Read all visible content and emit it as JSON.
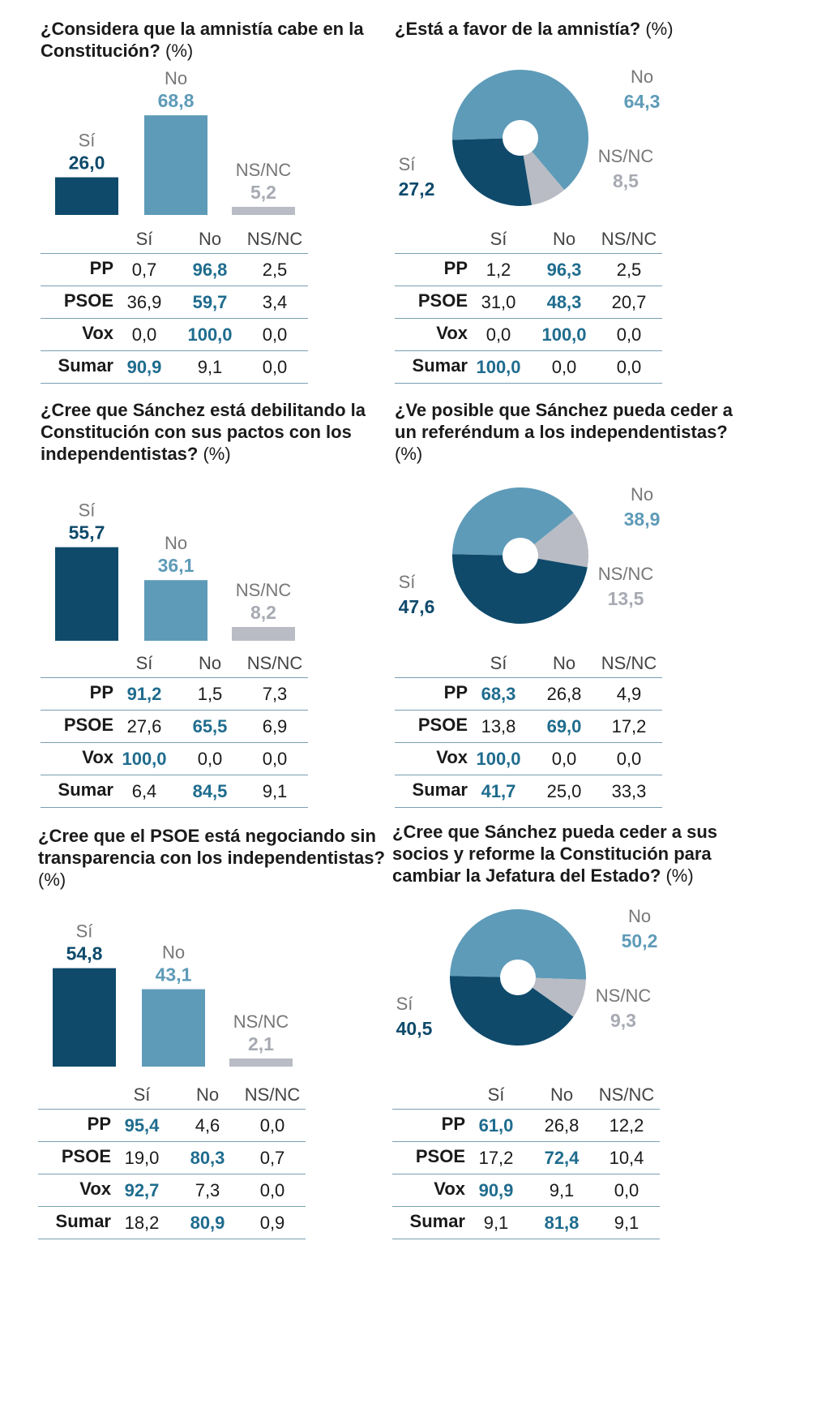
{
  "columns": [
    "Sí",
    "No",
    "NS/NC"
  ],
  "colors": {
    "si": "#0f4a6b",
    "no": "#5e9bb8",
    "nsnc": "#b9bcc4",
    "hl": "#1f6c8e"
  },
  "panels": [
    {
      "title": "¿Considera que la amnistía cabe en la Constitución?",
      "unit": "(%)",
      "chart_data": {
        "type": "bar",
        "categories": [
          "Sí",
          "No",
          "NS/NC"
        ],
        "values": [
          26.0,
          68.8,
          5.2
        ],
        "labels": [
          "26,0",
          "68,8",
          "5,2"
        ],
        "ylim": [
          0,
          100
        ]
      },
      "table": [
        {
          "party": "PP",
          "values": [
            "0,7",
            "96,8",
            "2,5"
          ],
          "hl": 1
        },
        {
          "party": "PSOE",
          "values": [
            "36,9",
            "59,7",
            "3,4"
          ],
          "hl": 1
        },
        {
          "party": "Vox",
          "values": [
            "0,0",
            "100,0",
            "0,0"
          ],
          "hl": 1
        },
        {
          "party": "Sumar",
          "values": [
            "90,9",
            "9,1",
            "0,0"
          ],
          "hl": 0
        }
      ]
    },
    {
      "title": "¿Está a favor de la amnistía?",
      "unit": "(%)",
      "chart_data": {
        "type": "pie",
        "categories": [
          "Sí",
          "No",
          "NS/NC"
        ],
        "values": [
          27.2,
          64.3,
          8.5
        ],
        "labels": [
          "27,2",
          "64,3",
          "8,5"
        ]
      },
      "table": [
        {
          "party": "PP",
          "values": [
            "1,2",
            "96,3",
            "2,5"
          ],
          "hl": 1
        },
        {
          "party": "PSOE",
          "values": [
            "31,0",
            "48,3",
            "20,7"
          ],
          "hl": 1
        },
        {
          "party": "Vox",
          "values": [
            "0,0",
            "100,0",
            "0,0"
          ],
          "hl": 1
        },
        {
          "party": "Sumar",
          "values": [
            "100,0",
            "0,0",
            "0,0"
          ],
          "hl": 0
        }
      ]
    },
    {
      "title": "¿Cree que Sánchez está debilitando la Constitución con sus pactos con los independentistas?",
      "unit": "(%)",
      "chart_data": {
        "type": "bar",
        "categories": [
          "Sí",
          "No",
          "NS/NC"
        ],
        "values": [
          55.7,
          36.1,
          8.2
        ],
        "labels": [
          "55,7",
          "36,1",
          "8,2"
        ],
        "ylim": [
          0,
          100
        ]
      },
      "table": [
        {
          "party": "PP",
          "values": [
            "91,2",
            "1,5",
            "7,3"
          ],
          "hl": 0
        },
        {
          "party": "PSOE",
          "values": [
            "27,6",
            "65,5",
            "6,9"
          ],
          "hl": 1
        },
        {
          "party": "Vox",
          "values": [
            "100,0",
            "0,0",
            "0,0"
          ],
          "hl": 0
        },
        {
          "party": "Sumar",
          "values": [
            "6,4",
            "84,5",
            "9,1"
          ],
          "hl": 1
        }
      ]
    },
    {
      "title": "¿Ve posible que Sánchez pueda ceder a un referéndum a los independentistas?",
      "unit": "(%)",
      "chart_data": {
        "type": "pie",
        "categories": [
          "Sí",
          "No",
          "NS/NC"
        ],
        "values": [
          47.6,
          38.9,
          13.5
        ],
        "labels": [
          "47,6",
          "38,9",
          "13,5"
        ]
      },
      "table": [
        {
          "party": "PP",
          "values": [
            "68,3",
            "26,8",
            "4,9"
          ],
          "hl": 0
        },
        {
          "party": "PSOE",
          "values": [
            "13,8",
            "69,0",
            "17,2"
          ],
          "hl": 1
        },
        {
          "party": "Vox",
          "values": [
            "100,0",
            "0,0",
            "0,0"
          ],
          "hl": 0
        },
        {
          "party": "Sumar",
          "values": [
            "41,7",
            "25,0",
            "33,3"
          ],
          "hl": 0
        }
      ]
    },
    {
      "title": "¿Cree que el PSOE está negociando sin transparencia con los independentistas?",
      "unit": "(%)",
      "chart_data": {
        "type": "bar",
        "categories": [
          "Sí",
          "No",
          "NS/NC"
        ],
        "values": [
          54.8,
          43.1,
          2.1
        ],
        "labels": [
          "54,8",
          "43,1",
          "2,1"
        ],
        "ylim": [
          0,
          100
        ]
      },
      "table": [
        {
          "party": "PP",
          "values": [
            "95,4",
            "4,6",
            "0,0"
          ],
          "hl": 0
        },
        {
          "party": "PSOE",
          "values": [
            "19,0",
            "80,3",
            "0,7"
          ],
          "hl": 1
        },
        {
          "party": "Vox",
          "values": [
            "92,7",
            "7,3",
            "0,0"
          ],
          "hl": 0
        },
        {
          "party": "Sumar",
          "values": [
            "18,2",
            "80,9",
            "0,9"
          ],
          "hl": 1
        }
      ]
    },
    {
      "title": "¿Cree que Sánchez pueda ceder a sus socios y reforme la Constitución para cambiar la Jefatura del Estado?",
      "unit": "(%)",
      "chart_data": {
        "type": "pie",
        "categories": [
          "Sí",
          "No",
          "NS/NC"
        ],
        "values": [
          40.5,
          50.2,
          9.3
        ],
        "labels": [
          "40,5",
          "50,2",
          "9,3"
        ]
      },
      "table": [
        {
          "party": "PP",
          "values": [
            "61,0",
            "26,8",
            "12,2"
          ],
          "hl": 0
        },
        {
          "party": "PSOE",
          "values": [
            "17,2",
            "72,4",
            "10,4"
          ],
          "hl": 1
        },
        {
          "party": "Vox",
          "values": [
            "90,9",
            "9,1",
            "0,0"
          ],
          "hl": 0
        },
        {
          "party": "Sumar",
          "values": [
            "9,1",
            "81,8",
            "9,1"
          ],
          "hl": 1
        }
      ]
    }
  ]
}
